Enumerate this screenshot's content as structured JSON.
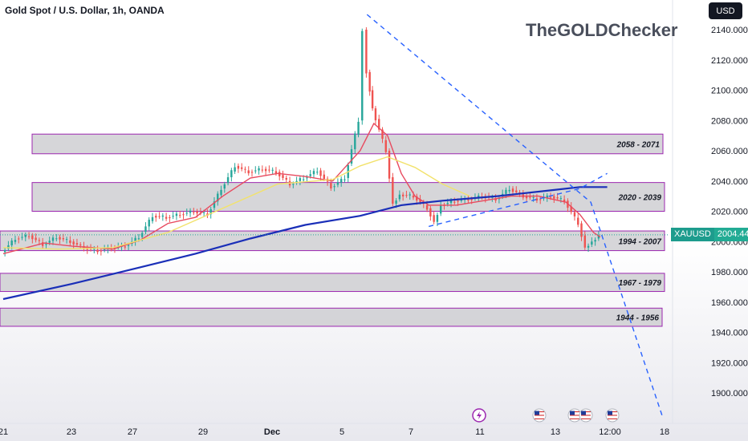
{
  "header": {
    "title": "Gold Spot / U.S. Dollar, 1h, OANDA",
    "watermark": "TheGOLDChecker",
    "currency": "USD"
  },
  "last_price": {
    "symbol": "XAUUSD",
    "value": "2004.440"
  },
  "colors": {
    "up": "#26a69a",
    "down": "#ef5350",
    "ma_fast": "#e84a5f",
    "ma_medium": "#f2e26b",
    "ma_slow": "#1a2fb8",
    "trendline": "#2962ff",
    "zone_fill": "#c8c8cc",
    "zone_border": "#9c27b0"
  },
  "chart_data": {
    "type": "candlestick",
    "y_axis": {
      "min": 1880,
      "max": 2150,
      "ticks": [
        "1900.000",
        "1920.000",
        "1940.000",
        "1960.000",
        "1980.000",
        "2000.000",
        "2020.000",
        "2040.000",
        "2060.000",
        "2080.000",
        "2100.000",
        "2120.000",
        "2140.000"
      ]
    },
    "x_axis": {
      "labels": [
        "21",
        "23",
        "27",
        "29",
        "Dec",
        "5",
        "7",
        "11",
        "13",
        "12:00",
        "18"
      ]
    },
    "zones": [
      {
        "label": "2058 - 2071",
        "low": 2058,
        "high": 2071
      },
      {
        "label": "2020 - 2039",
        "low": 2020,
        "high": 2039
      },
      {
        "label": "1994 - 2007",
        "low": 1994,
        "high": 2007
      },
      {
        "label": "1967 - 1979",
        "low": 1967,
        "high": 1979
      },
      {
        "label": "1944 - 1956",
        "low": 1944,
        "high": 1956
      }
    ],
    "series": [
      {
        "name": "price",
        "style": "candles",
        "points": [
          [
            0,
            1993
          ],
          [
            1,
            2002
          ],
          [
            2,
            2004
          ],
          [
            3,
            1998
          ],
          [
            4,
            2003
          ],
          [
            5,
            2000
          ],
          [
            6,
            1996
          ],
          [
            7,
            1994
          ],
          [
            8,
            1996
          ],
          [
            9,
            1997
          ],
          [
            10,
            2003
          ],
          [
            11,
            2017
          ],
          [
            12,
            2016
          ],
          [
            13,
            2018
          ],
          [
            14,
            2020
          ],
          [
            15,
            2018
          ],
          [
            16,
            2035
          ],
          [
            17,
            2050
          ],
          [
            18,
            2046
          ],
          [
            19,
            2048
          ],
          [
            20,
            2046
          ],
          [
            21,
            2038
          ],
          [
            22,
            2042
          ],
          [
            23,
            2047
          ],
          [
            24,
            2036
          ],
          [
            25,
            2042
          ],
          [
            26,
            2080
          ],
          [
            26.3,
            2140
          ],
          [
            26.6,
            2112
          ],
          [
            27,
            2088
          ],
          [
            28,
            2060
          ],
          [
            28.5,
            2025
          ],
          [
            29,
            2031
          ],
          [
            30,
            2030
          ],
          [
            31,
            2022
          ],
          [
            31.5,
            2013
          ],
          [
            32,
            2024
          ],
          [
            33,
            2027
          ],
          [
            34,
            2028
          ],
          [
            35,
            2030
          ],
          [
            36,
            2028
          ],
          [
            37,
            2035
          ],
          [
            38,
            2030
          ],
          [
            39,
            2028
          ],
          [
            40,
            2030
          ],
          [
            41,
            2027
          ],
          [
            42,
            2012
          ],
          [
            42.5,
            1996
          ],
          [
            43,
            2000
          ],
          [
            43.5,
            2004
          ]
        ]
      },
      {
        "name": "ma_fast",
        "style": "line",
        "points": [
          [
            0,
            1992
          ],
          [
            3,
            1999
          ],
          [
            5,
            1997
          ],
          [
            8,
            1995
          ],
          [
            10,
            2001
          ],
          [
            12,
            2012
          ],
          [
            14,
            2016
          ],
          [
            16,
            2030
          ],
          [
            18,
            2042
          ],
          [
            20,
            2045
          ],
          [
            22,
            2043
          ],
          [
            24,
            2040
          ],
          [
            26,
            2060
          ],
          [
            27,
            2078
          ],
          [
            28,
            2070
          ],
          [
            29,
            2045
          ],
          [
            30,
            2030
          ],
          [
            31,
            2024
          ],
          [
            33,
            2024
          ],
          [
            35,
            2027
          ],
          [
            37,
            2030
          ],
          [
            39,
            2030
          ],
          [
            41,
            2026
          ],
          [
            42,
            2018
          ],
          [
            43,
            2006
          ],
          [
            43.5,
            2003
          ]
        ]
      },
      {
        "name": "ma_medium",
        "style": "line",
        "points": [
          [
            0,
            1996
          ],
          [
            4,
            1995
          ],
          [
            8,
            1996
          ],
          [
            12,
            2006
          ],
          [
            16,
            2022
          ],
          [
            20,
            2038
          ],
          [
            24,
            2041
          ],
          [
            26,
            2050
          ],
          [
            28,
            2056
          ],
          [
            30,
            2049
          ],
          [
            32,
            2038
          ],
          [
            34,
            2030
          ]
        ]
      },
      {
        "name": "ma_slow",
        "style": "line",
        "points": [
          [
            0,
            1962
          ],
          [
            5,
            1972
          ],
          [
            10,
            1983
          ],
          [
            14,
            1992
          ],
          [
            18,
            2002
          ],
          [
            22,
            2011
          ],
          [
            26,
            2017
          ],
          [
            29,
            2024
          ],
          [
            32,
            2027
          ],
          [
            36,
            2030
          ],
          [
            40,
            2034
          ],
          [
            42,
            2036
          ],
          [
            44,
            2036
          ]
        ]
      },
      {
        "name": "downtrend",
        "style": "dashed",
        "points": [
          [
            26.5,
            2150
          ],
          [
            42.8,
            2026
          ],
          [
            48,
            1885
          ]
        ]
      },
      {
        "name": "rising_channel",
        "style": "dashed",
        "points": [
          [
            31,
            2010
          ],
          [
            42,
            2035
          ],
          [
            44,
            2045
          ]
        ]
      }
    ]
  },
  "event_icons": [
    "lightning-icon",
    "us-flag-icon",
    "us-flag-icon",
    "us-flag-icon",
    "us-flag-icon"
  ]
}
